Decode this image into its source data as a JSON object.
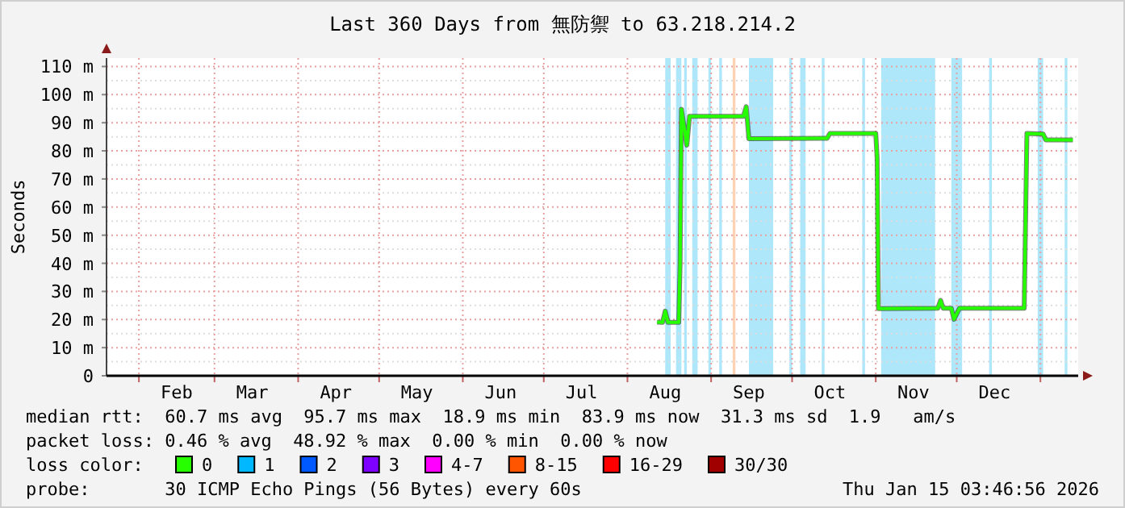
{
  "chart_data": {
    "type": "line",
    "title": "Last 360 Days from 無防禦 to 63.218.214.2",
    "ylabel": "Seconds",
    "legend_title": "loss color:",
    "legend": "bottom",
    "grid": true,
    "xlim": [
      "2025-01-20",
      "2026-01-15"
    ],
    "xticks": [
      {
        "value": "2025-02-01",
        "label": null
      },
      {
        "value": "2025-02-15",
        "label": "Feb"
      },
      {
        "value": "2025-03-01",
        "label": null
      },
      {
        "value": "2025-03-15",
        "label": "Mar"
      },
      {
        "value": "2025-04-01",
        "label": null
      },
      {
        "value": "2025-04-15",
        "label": "Apr"
      },
      {
        "value": "2025-05-01",
        "label": null
      },
      {
        "value": "2025-05-15",
        "label": "May"
      },
      {
        "value": "2025-06-01",
        "label": null
      },
      {
        "value": "2025-06-15",
        "label": "Jun"
      },
      {
        "value": "2025-07-01",
        "label": null
      },
      {
        "value": "2025-07-15",
        "label": "Jul"
      },
      {
        "value": "2025-08-01",
        "label": null
      },
      {
        "value": "2025-08-15",
        "label": "Aug"
      },
      {
        "value": "2025-09-01",
        "label": null
      },
      {
        "value": "2025-09-15",
        "label": "Sep"
      },
      {
        "value": "2025-10-01",
        "label": null
      },
      {
        "value": "2025-10-15",
        "label": "Oct"
      },
      {
        "value": "2025-11-01",
        "label": null
      },
      {
        "value": "2025-11-15",
        "label": "Nov"
      },
      {
        "value": "2025-12-01",
        "label": null
      },
      {
        "value": "2025-12-15",
        "label": "Dec"
      },
      {
        "value": "2026-01-01",
        "label": null
      }
    ],
    "ylim": [
      0,
      113
    ],
    "yticks": [
      0,
      {
        "value": 10,
        "label": "10 m"
      },
      {
        "value": 20,
        "label": "20 m"
      },
      {
        "value": 30,
        "label": "30 m"
      },
      {
        "value": 40,
        "label": "40 m"
      },
      {
        "value": 50,
        "label": "50 m"
      },
      {
        "value": 60,
        "label": "60 m"
      },
      {
        "value": 70,
        "label": "70 m"
      },
      {
        "value": 80,
        "label": "80 m"
      },
      {
        "value": 90,
        "label": "90 m"
      },
      {
        "value": 100,
        "label": "100 m"
      },
      {
        "value": 110,
        "label": "110 m"
      }
    ],
    "series": [
      {
        "name": "0",
        "color": "#26ff00",
        "x": [
          "2025-08-12",
          "2025-08-14",
          "2025-08-15",
          "2025-08-16",
          "2025-08-20",
          "2025-08-20T12:00",
          "2025-08-21",
          "2025-08-23",
          "2025-08-24",
          "2025-09-13",
          "2025-09-14",
          "2025-09-15",
          "2025-10-14",
          "2025-10-15",
          "2025-11-01",
          "2025-11-01T12:00",
          "2025-11-02",
          "2025-11-24",
          "2025-11-25",
          "2025-11-26",
          "2025-11-29",
          "2025-11-30",
          "2025-12-02",
          "2025-12-26",
          "2025-12-27",
          "2026-01-02",
          "2026-01-03",
          "2026-01-13"
        ],
        "values": [
          19.1,
          19,
          23,
          19,
          19,
          40,
          94.8,
          82,
          92.3,
          92.3,
          95.7,
          84.3,
          84.5,
          86.2,
          86.2,
          77.6,
          23.9,
          24,
          26.8,
          24,
          24,
          20.1,
          24,
          24,
          86.2,
          86,
          83.9,
          83.9
        ]
      },
      {
        "name": "1",
        "color": "#00b8ff"
      },
      {
        "name": "2",
        "color": "#0059ff"
      },
      {
        "name": "3",
        "color": "#7e00ff"
      },
      {
        "name": "4-7",
        "color": "#ff00ff"
      },
      {
        "name": "8-15",
        "color": "#ff5500"
      },
      {
        "name": "16-29",
        "color": "#ff0000"
      },
      {
        "name": "30/30",
        "color": "#a10000"
      }
    ],
    "bands": [
      {
        "axis": "x",
        "from": "2025-08-15",
        "to": "2025-08-17",
        "color": "#aee6fa"
      },
      {
        "axis": "x",
        "from": "2025-08-19",
        "to": "2025-08-21",
        "color": "#aee6fa"
      },
      {
        "axis": "x",
        "from": "2025-08-22",
        "to": "2025-08-23",
        "color": "#aee6fa"
      },
      {
        "axis": "x",
        "from": "2025-08-25",
        "to": "2025-08-27",
        "color": "#aee6fa"
      },
      {
        "axis": "x",
        "from": "2025-08-31",
        "to": "2025-09-01",
        "color": "#aee6fa"
      },
      {
        "axis": "x",
        "from": "2025-09-04",
        "to": "2025-09-05",
        "color": "#aee6fa"
      },
      {
        "axis": "x",
        "from": "2025-09-09",
        "to": "2025-09-10",
        "color": "#ffd2b4"
      },
      {
        "axis": "x",
        "from": "2025-09-15",
        "to": "2025-09-24",
        "color": "#aee6fa"
      },
      {
        "axis": "x",
        "from": "2025-09-30",
        "to": "2025-10-01",
        "color": "#aee6fa"
      },
      {
        "axis": "x",
        "from": "2025-10-04",
        "to": "2025-10-06",
        "color": "#aee6fa"
      },
      {
        "axis": "x",
        "from": "2025-10-12",
        "to": "2025-10-13",
        "color": "#aee6fa"
      },
      {
        "axis": "x",
        "from": "2025-10-27",
        "to": "2025-10-28",
        "color": "#aee6fa"
      },
      {
        "axis": "x",
        "from": "2025-11-03",
        "to": "2025-11-23",
        "color": "#aee6fa"
      },
      {
        "axis": "x",
        "from": "2025-11-29",
        "to": "2025-12-03",
        "color": "#aee6fa"
      },
      {
        "axis": "x",
        "from": "2025-12-13",
        "to": "2025-12-14",
        "color": "#aee6fa"
      },
      {
        "axis": "x",
        "from": "2025-12-31",
        "to": "2026-01-02",
        "color": "#aee6fa"
      },
      {
        "axis": "x",
        "from": "2026-01-10",
        "to": "2026-01-11",
        "color": "#aee6fa"
      }
    ],
    "annotations": [
      "median rtt:  60.7 ms avg  95.7 ms max  18.9 ms min  83.9 ms now  31.3 ms sd  1.9   am/s",
      "packet loss: 0.46 % avg  48.92 % max  0.00 % min  0.00 % now",
      "probe:       30 ICMP Echo Pings (56 Bytes) every 60s",
      "Thu Jan 15 03:46:56 2026"
    ]
  }
}
